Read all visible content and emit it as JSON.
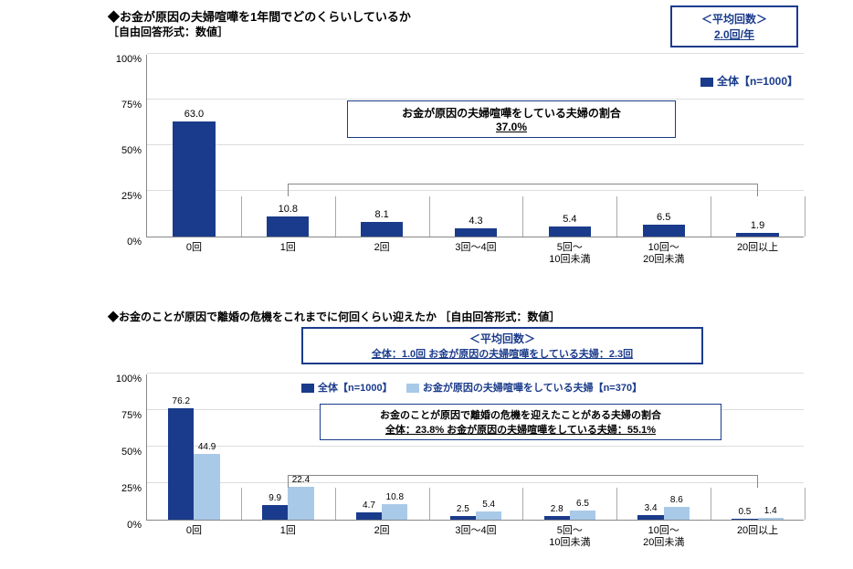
{
  "chart1": {
    "type": "bar",
    "title": "◆お金が原因の夫婦喧嘩を1年間でどのくらいしているか",
    "subtitle": "［自由回答形式：数値］",
    "avg_box": {
      "label": "＜平均回数＞",
      "value": "2.0回/年"
    },
    "legend": [
      {
        "label": "全体【n=1000】",
        "color": "#1a3b8b"
      }
    ],
    "categories": [
      "0回",
      "1回",
      "2回",
      "3回～4回",
      "5回～\n10回未満",
      "10回～\n20回未満",
      "20回以上"
    ],
    "values": [
      63.0,
      10.8,
      8.1,
      4.3,
      5.4,
      6.5,
      1.9
    ],
    "bar_color": "#1a3b8b",
    "ylim": [
      0,
      100
    ],
    "yticks": [
      0,
      25,
      50,
      75,
      100
    ],
    "annotation": {
      "line1": "お金が原因の夫婦喧嘩をしている夫婦の割合",
      "line2": "37.0%",
      "bracket_from": 1,
      "bracket_to": 6
    },
    "background_color": "#ffffff",
    "axis_color": "#888888"
  },
  "chart2": {
    "type": "bar",
    "title": "◆お金のことが原因で離婚の危機をこれまでに何回くらい迎えたか  ［自由回答形式：数値］",
    "avg_box": {
      "label": "＜平均回数＞",
      "value": "全体：1.0回  お金が原因の夫婦喧嘩をしている夫婦：2.3回"
    },
    "legend": [
      {
        "label": "全体【n=1000】",
        "color": "#1a3b8b"
      },
      {
        "label": "お金が原因の夫婦喧嘩をしている夫婦【n=370】",
        "color": "#a9c9e8"
      }
    ],
    "categories": [
      "0回",
      "1回",
      "2回",
      "3回～4回",
      "5回～\n10回未満",
      "10回～\n20回未満",
      "20回以上"
    ],
    "series": [
      {
        "color": "#1a3b8b",
        "values": [
          76.2,
          9.9,
          4.7,
          2.5,
          2.8,
          3.4,
          0.5
        ]
      },
      {
        "color": "#a9c9e8",
        "values": [
          44.9,
          22.4,
          10.8,
          5.4,
          6.5,
          8.6,
          1.4
        ]
      }
    ],
    "ylim": [
      0,
      100
    ],
    "yticks": [
      0,
      25,
      50,
      75,
      100
    ],
    "annotation": {
      "line1": "お金のことが原因で離婚の危機を迎えたことがある夫婦の割合",
      "line2": "全体：23.8%  お金が原因の夫婦喧嘩をしている夫婦：55.1%",
      "bracket_from": 1,
      "bracket_to": 6
    },
    "background_color": "#ffffff",
    "axis_color": "#888888"
  }
}
